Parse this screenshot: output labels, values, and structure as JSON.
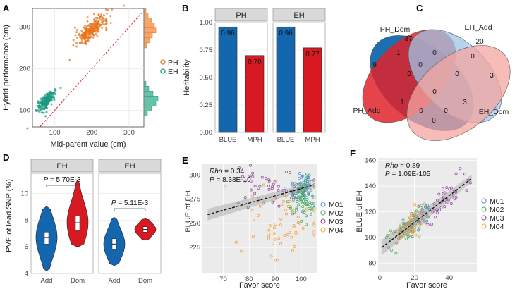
{
  "panels": {
    "A": {
      "label": "A"
    },
    "B": {
      "label": "B"
    },
    "C": {
      "label": "C"
    },
    "D": {
      "label": "D"
    },
    "E": {
      "label": "E"
    },
    "F": {
      "label": "F"
    }
  },
  "chart_data": [
    {
      "panel": "A",
      "type": "scatter",
      "xlabel": "Mid-parent value (cm)",
      "ylabel": "Hybrid performance (cm)",
      "xlim": [
        40,
        340
      ],
      "ylim": [
        60,
        345
      ],
      "xticks": [
        100,
        200,
        300
      ],
      "yticks": [
        100,
        200,
        300
      ],
      "legend": [
        "PH",
        "EH"
      ],
      "series": [
        {
          "name": "PH",
          "color": "#E8741B",
          "center": [
            200,
            295
          ],
          "spread": [
            22,
            18
          ],
          "n": 260
        },
        {
          "name": "EH",
          "color": "#1A9A7F",
          "center": [
            78,
            122
          ],
          "spread": [
            12,
            14
          ],
          "n": 220
        }
      ],
      "identity_line": true,
      "marginal_histograms": true
    },
    {
      "panel": "B",
      "type": "bar",
      "ylabel": "Heritability",
      "ylim": [
        0,
        1.0
      ],
      "yticks": [
        "0.00",
        "0.25",
        "0.50",
        "0.75",
        "1.00"
      ],
      "facets": [
        {
          "name": "PH",
          "categories": [
            "BLUE",
            "MPH"
          ],
          "values": [
            0.96,
            0.7
          ],
          "labels": [
            "0.96",
            "0.70"
          ]
        },
        {
          "name": "EH",
          "categories": [
            "BLUE",
            "MPH"
          ],
          "values": [
            0.96,
            0.77
          ],
          "labels": [
            "0.96",
            "0.77"
          ]
        }
      ],
      "colors": {
        "BLUE": "#1466AE",
        "MPH": "#D71921"
      }
    },
    {
      "panel": "C",
      "type": "venn",
      "sets": [
        "PH_Add",
        "PH_Dom",
        "EH_Add",
        "EH_Dom"
      ],
      "counts": {
        "PH_Add_only": "9",
        "PH_Dom_only": "37",
        "EH_Add_only": "20",
        "EH_Dom_only": "3",
        "PHAdd_PHDom": "1",
        "PHDom_EHAdd": "0",
        "EHAdd_EHDom": "0",
        "PHAdd_EHDom": "0",
        "PHAdd_PHDom_EHAdd": "0",
        "PHDom_EHAdd_EHDom": "0",
        "PHAdd_EHAdd": "1",
        "PHDom_EHDom": "3",
        "center": "0",
        "lower_left": "0",
        "lower_right": "0",
        "bottom": "0"
      }
    },
    {
      "panel": "D",
      "type": "violin",
      "ylabel": "PVE of lead SNP (%)",
      "ylim": [
        4,
        11.5
      ],
      "yticks": [
        "4",
        "6",
        "8",
        "10"
      ],
      "facets": [
        {
          "name": "PH",
          "categories": [
            "Add",
            "Dom"
          ],
          "pvalue": "5.70E-3",
          "medians": [
            6.7,
            7.8
          ],
          "q1": [
            6.2,
            7.2
          ],
          "q3": [
            7.1,
            8.3
          ],
          "min": [
            4.2,
            6.0
          ],
          "max": [
            9.0,
            11.0
          ]
        },
        {
          "name": "EH",
          "categories": [
            "Add",
            "Dom"
          ],
          "pvalue": "5.11E-3",
          "medians": [
            6.2,
            7.3
          ],
          "q1": [
            5.8,
            7.1
          ],
          "q3": [
            6.6,
            7.5
          ],
          "min": [
            4.6,
            6.5
          ],
          "max": [
            8.2,
            8.1
          ]
        }
      ],
      "colors": {
        "Add": "#1466AE",
        "Dom": "#D71921"
      },
      "p_prefix": "P"
    },
    {
      "panel": "E",
      "type": "scatter",
      "xlabel": "Favor score",
      "ylabel": "BLUE of PH",
      "xlim": [
        62,
        106
      ],
      "ylim": [
        198,
        312
      ],
      "xticks": [
        70,
        80,
        90,
        100
      ],
      "yticks": [
        225,
        250,
        275,
        300
      ],
      "rho_label": "Rho",
      "rho_value": "= 0.34",
      "p_label": "P",
      "p_value": "= 8.38E-10",
      "fit": {
        "x0": 64,
        "y0": 259,
        "x1": 104,
        "y1": 289
      },
      "legend": [
        "M01",
        "M02",
        "M03",
        "M04"
      ]
    },
    {
      "panel": "F",
      "type": "scatter",
      "xlabel": "Favor score",
      "ylabel": "BLUE of EH",
      "xlim": [
        -1,
        56
      ],
      "ylim": [
        73,
        162
      ],
      "xticks": [
        0,
        20,
        40
      ],
      "yticks": [
        80,
        100,
        120,
        140,
        160
      ],
      "rho_label": "Rho",
      "rho_value": "= 0.89",
      "p_label": "P",
      "p_value": "= 1.09E-105",
      "fit": {
        "x0": 1,
        "y0": 92,
        "x1": 53,
        "y1": 146
      },
      "legend": [
        "M01",
        "M02",
        "M03",
        "M04"
      ]
    }
  ],
  "colors": {
    "M01": "#4C8CCB",
    "M02": "#3DAA4F",
    "M03": "#8C3F9E",
    "M04": "#F29E38",
    "panel_bg": "#EBEBEB",
    "strip_bg": "#D9D9D9"
  }
}
